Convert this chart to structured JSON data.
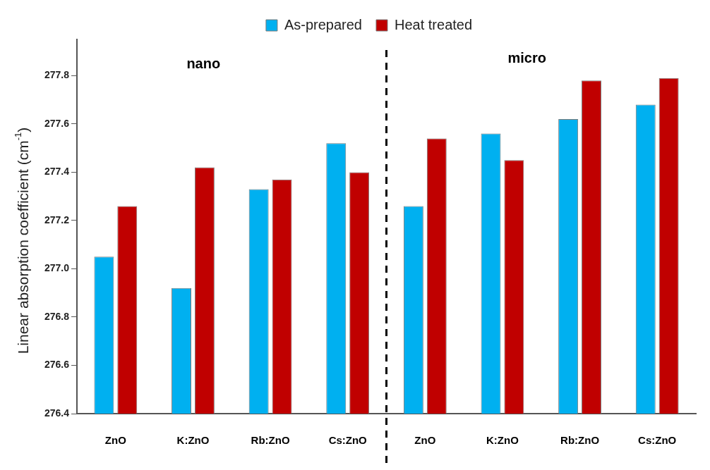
{
  "chart_data": {
    "type": "bar",
    "ylabel": "Linear absorption coefficient (cm$^{-1}$)",
    "categories": [
      "ZnO",
      "K:ZnO",
      "Rb:ZnO",
      "Cs:ZnO",
      "ZnO",
      "K:ZnO",
      "Rb:ZnO",
      "Cs:ZnO"
    ],
    "series": [
      {
        "name": "As-prepared",
        "color": "#00b0f0",
        "values": [
          277.05,
          276.92,
          277.33,
          277.52,
          277.26,
          277.56,
          277.62,
          277.68
        ]
      },
      {
        "name": "Heat treated",
        "color": "#c00000",
        "values": [
          277.26,
          277.42,
          277.37,
          277.4,
          277.54,
          277.45,
          277.78,
          277.79
        ]
      }
    ],
    "ylim": [
      276.4,
      277.95
    ],
    "yticks": [
      276.4,
      276.6,
      276.8,
      {
        "value": 277,
        "label": "277.0"
      },
      277.2,
      277.4,
      277.6,
      277.8
    ],
    "annotations": [
      "nano",
      "micro"
    ],
    "grid": false,
    "legend": "top"
  }
}
